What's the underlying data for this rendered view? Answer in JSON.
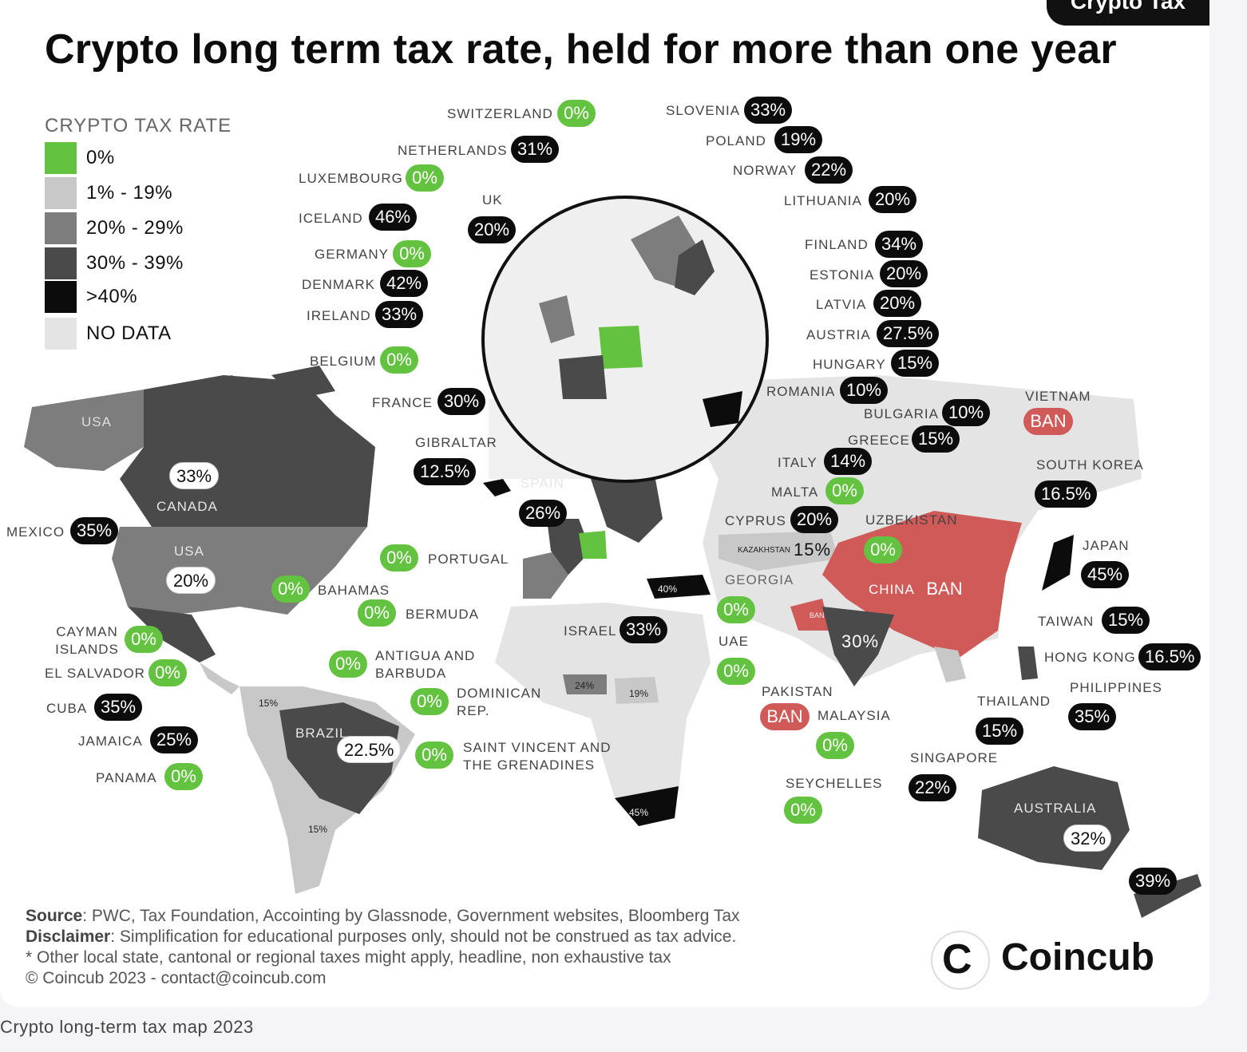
{
  "header": {
    "corner_tag": "Crypto Tax",
    "title": "Crypto long term tax rate, held for more than one year"
  },
  "legend": {
    "title": "CRYPTO TAX RATE",
    "items": [
      {
        "label": "0%",
        "color": "#63c23f"
      },
      {
        "label": "1% - 19%",
        "color": "#c8c8c8"
      },
      {
        "label": "20% - 29%",
        "color": "#7d7d7d"
      },
      {
        "label": "30% - 39%",
        "color": "#4a4a4a"
      },
      {
        "label": ">40%",
        "color": "#0c0c0c"
      },
      {
        "label": "NO DATA",
        "color": "#e4e4e4"
      }
    ]
  },
  "callouts": {
    "switzerland": {
      "name": "SWITZERLAND",
      "rate": "0%"
    },
    "slovenia": {
      "name": "SLOVENIA",
      "rate": "33%"
    },
    "netherlands": {
      "name": "NETHERLANDS",
      "rate": "31%"
    },
    "poland": {
      "name": "POLAND",
      "rate": "19%"
    },
    "luxembourg": {
      "name": "LUXEMBOURG",
      "rate": "0%"
    },
    "norway": {
      "name": "NORWAY",
      "rate": "22%"
    },
    "uk": {
      "name": "UK",
      "rate": "20%"
    },
    "lithuania": {
      "name": "LITHUANIA",
      "rate": "20%"
    },
    "iceland": {
      "name": "ICELAND",
      "rate": "46%"
    },
    "finland": {
      "name": "FINLAND",
      "rate": "34%"
    },
    "germany": {
      "name": "GERMANY",
      "rate": "0%"
    },
    "estonia": {
      "name": "ESTONIA",
      "rate": "20%"
    },
    "denmark": {
      "name": "DENMARK",
      "rate": "42%"
    },
    "latvia": {
      "name": "LATVIA",
      "rate": "20%"
    },
    "ireland": {
      "name": "IRELAND",
      "rate": "33%"
    },
    "austria": {
      "name": "AUSTRIA",
      "rate": "27.5%"
    },
    "belgium": {
      "name": "BELGIUM",
      "rate": "0%"
    },
    "hungary": {
      "name": "HUNGARY",
      "rate": "15%"
    },
    "romania": {
      "name": "ROMANIA",
      "rate": "10%"
    },
    "france": {
      "name": "FRANCE",
      "rate": "30%"
    },
    "bulgaria": {
      "name": "BULGARIA",
      "rate": "10%"
    },
    "vietnam": {
      "name": "VIETNAM",
      "rate": "BAN"
    },
    "gibraltar": {
      "name": "GIBRALTAR",
      "rate": "12.5%"
    },
    "greece": {
      "name": "GREECE",
      "rate": "15%"
    },
    "spain": {
      "name": "SPAIN",
      "rate": "26%"
    },
    "italy": {
      "name": "ITALY",
      "rate": "14%"
    },
    "south_korea": {
      "name": "SOUTH KOREA",
      "rate": "16.5%"
    },
    "malta": {
      "name": "MALTA",
      "rate": "0%"
    },
    "cyprus": {
      "name": "CYPRUS",
      "rate": "20%"
    },
    "uzbekistan": {
      "name": "UZBEKISTAN",
      "rate": "0%"
    },
    "kazakhstan": {
      "name": "KAZAKHSTAN",
      "rate": "15%"
    },
    "japan": {
      "name": "JAPAN",
      "rate": "45%"
    },
    "mexico": {
      "name": "MEXICO",
      "rate": "35%"
    },
    "portugal": {
      "name": "PORTUGAL",
      "rate": "0%"
    },
    "georgia": {
      "name": "GEORGIA",
      "rate": "0%"
    },
    "china": {
      "name": "CHINA",
      "rate": "BAN"
    },
    "bahamas": {
      "name": "BAHAMAS",
      "rate": "0%"
    },
    "bermuda": {
      "name": "BERMUDA",
      "rate": "0%"
    },
    "taiwan": {
      "name": "TAIWAN",
      "rate": "15%"
    },
    "cayman": {
      "name": "CAYMAN ISLANDS",
      "rate": "0%"
    },
    "israel": {
      "name": "ISRAEL",
      "rate": "33%"
    },
    "uae": {
      "name": "UAE",
      "rate": "0%"
    },
    "hong_kong": {
      "name": "HONG KONG",
      "rate": "16.5%"
    },
    "el_salvador": {
      "name": "EL SALVADOR",
      "rate": "0%"
    },
    "antigua": {
      "name": "ANTIGUA AND BARBUDA",
      "rate": "0%"
    },
    "india": {
      "name": "",
      "rate": "30%"
    },
    "philippines": {
      "name": "PHILIPPINES",
      "rate": "35%"
    },
    "cuba": {
      "name": "CUBA",
      "rate": "35%"
    },
    "dominican": {
      "name": "DOMINICAN REP.",
      "rate": "0%"
    },
    "pakistan": {
      "name": "PAKISTAN",
      "rate": "BAN"
    },
    "malaysia": {
      "name": "MALAYSIA",
      "rate": "0%"
    },
    "thailand": {
      "name": "THAILAND",
      "rate": "15%"
    },
    "jamaica": {
      "name": "JAMAICA",
      "rate": "25%"
    },
    "saint_vincent": {
      "name": "SAINT VINCENT AND THE GRENADINES",
      "rate": "0%"
    },
    "singapore": {
      "name": "SINGAPORE",
      "rate": "22%"
    },
    "seychelles": {
      "name": "SEYCHELLES",
      "rate": "0%"
    },
    "panama": {
      "name": "PANAMA",
      "rate": "0%"
    },
    "brazil": {
      "name": "BRAZIL",
      "rate": "22.5%"
    },
    "canada": {
      "name": "CANADA",
      "rate": "33%"
    },
    "usa": {
      "name": "USA",
      "rate": "20%"
    },
    "australia": {
      "name": "AUSTRALIA",
      "rate": "32%"
    },
    "new_zealand": {
      "name": "",
      "rate": "39%"
    }
  },
  "map_labels": {
    "alaska": "USA",
    "turkey": "40%",
    "india_ban": "BAN",
    "nigeria": "24%",
    "chad": "19%",
    "colombia": "15%",
    "argentina": "15%",
    "south_africa": "45%"
  },
  "footer": {
    "source_label": "Source",
    "source_text": ": PWC, Tax Foundation, Accointing by Glassnode, Government websites, Bloomberg Tax",
    "disclaimer_label": "Disclaimer",
    "disclaimer_text": ": Simplification for educational purposes only, should not be construed as tax advice.",
    "note": "* Other local state, cantonal or regional taxes might apply, headline, non exhaustive tax",
    "copyright": "© Coincub 2023 - contact@coincub.com",
    "brand": "Coincub",
    "brand_mark": "C"
  },
  "caption": "Crypto long-term tax map 2023"
}
